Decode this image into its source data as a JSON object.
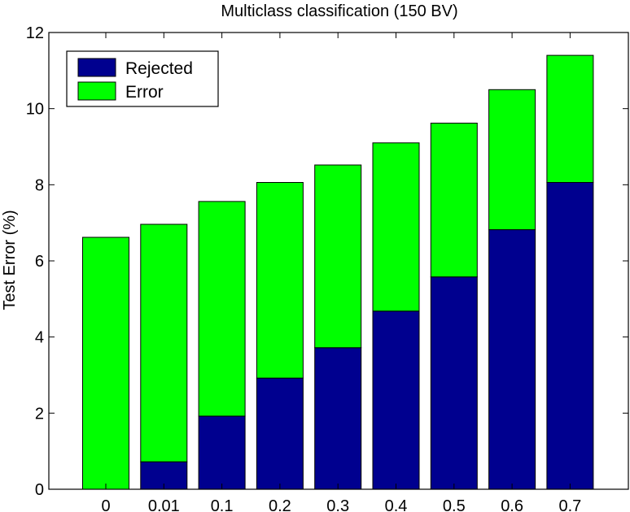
{
  "chart_data": {
    "type": "bar",
    "stacked": true,
    "title": "Multiclass classification (150 BV)",
    "xlabel": "",
    "ylabel": "Test Error (%)",
    "categories": [
      "0",
      "0.01",
      "0.1",
      "0.2",
      "0.3",
      "0.4",
      "0.5",
      "0.6",
      "0.7"
    ],
    "series": [
      {
        "name": "Rejected",
        "color": "#00008f",
        "values": [
          0,
          0.72,
          1.92,
          2.92,
          3.72,
          4.68,
          5.58,
          6.82,
          8.06
        ]
      },
      {
        "name": "Error",
        "color": "#00ff00",
        "values": [
          6.62,
          6.24,
          5.64,
          5.14,
          4.8,
          4.42,
          4.04,
          3.68,
          3.34
        ]
      }
    ],
    "ylim": [
      0,
      12
    ],
    "yticks": [
      "0",
      "2",
      "4",
      "6",
      "8",
      "10",
      "12"
    ],
    "grid": false,
    "legend_position": "top-left"
  }
}
